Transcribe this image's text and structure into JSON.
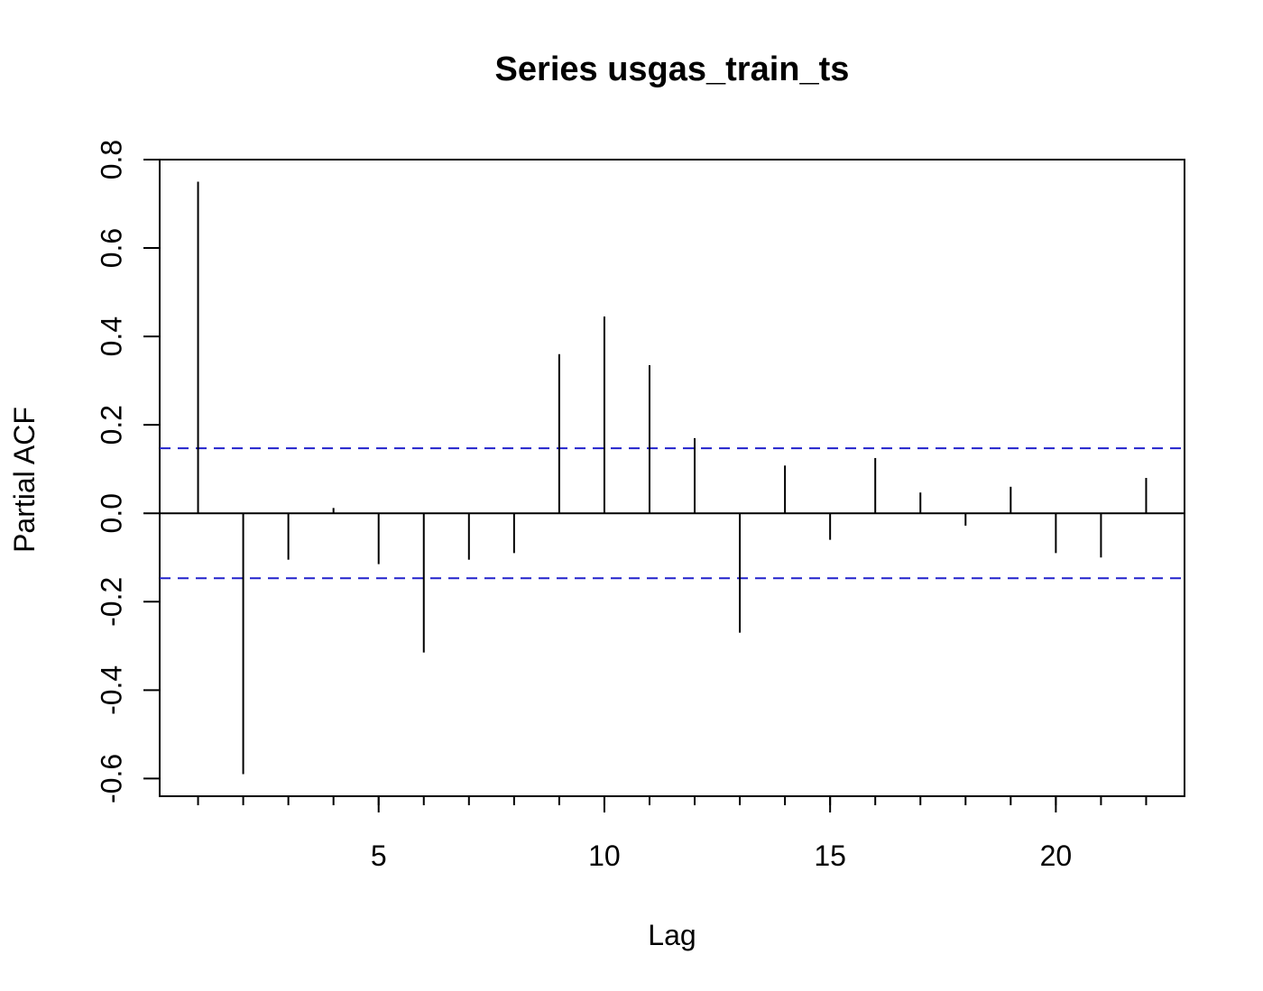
{
  "chart_data": {
    "type": "bar",
    "title": "Series  usgas_train_ts",
    "xlabel": "Lag",
    "ylabel": "Partial ACF",
    "xlim": [
      0.15,
      22.85
    ],
    "ylim": [
      -0.64,
      0.8
    ],
    "x_ticks": [
      5,
      10,
      15,
      20
    ],
    "y_ticks": [
      "-0.6",
      "-0.4",
      "-0.2",
      "0.0",
      "0.2",
      "0.4",
      "0.6",
      "0.8"
    ],
    "lags": [
      1,
      2,
      3,
      4,
      5,
      6,
      7,
      8,
      9,
      10,
      11,
      12,
      13,
      14,
      15,
      16,
      17,
      18,
      19,
      20,
      21,
      22
    ],
    "values": [
      0.75,
      -0.59,
      -0.105,
      0.012,
      -0.115,
      -0.315,
      -0.105,
      -0.09,
      0.36,
      0.445,
      0.335,
      0.17,
      -0.27,
      0.108,
      -0.06,
      0.125,
      0.047,
      -0.028,
      0.06,
      -0.09,
      -0.1,
      0.08
    ],
    "ci": [
      -0.147,
      0.147
    ],
    "ci_color": "#2222cc",
    "grid": false,
    "legend": "none"
  }
}
